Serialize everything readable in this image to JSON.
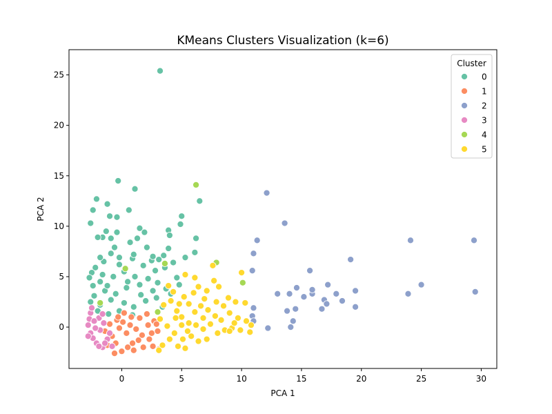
{
  "chart_data": {
    "type": "scatter",
    "title": "KMeans Clusters Visualization (k=6)",
    "xlabel": "PCA 1",
    "ylabel": "PCA 2",
    "xlim": [
      -4.4,
      31.3
    ],
    "ylim": [
      -4.1,
      27.5
    ],
    "xticks": [
      0,
      5,
      10,
      15,
      20,
      25,
      30
    ],
    "yticks": [
      0,
      5,
      10,
      15,
      20,
      25
    ],
    "grid": false,
    "legend": {
      "title": "Cluster",
      "placement": "top-right"
    },
    "series": [
      {
        "name": "0",
        "color": "#66c2a5",
        "points": [
          [
            3.2,
            25.4
          ],
          [
            -0.3,
            14.5
          ],
          [
            1.1,
            13.7
          ],
          [
            -2.1,
            12.7
          ],
          [
            -2.4,
            11.6
          ],
          [
            -1.2,
            12.2
          ],
          [
            0.6,
            11.6
          ],
          [
            -1.0,
            11.0
          ],
          [
            -0.4,
            10.9
          ],
          [
            -2.6,
            10.3
          ],
          [
            6.5,
            12.5
          ],
          [
            5.0,
            11.0
          ],
          [
            4.9,
            10.2
          ],
          [
            3.9,
            9.6
          ],
          [
            4.0,
            9.1
          ],
          [
            1.5,
            9.8
          ],
          [
            1.9,
            9.4
          ],
          [
            -1.3,
            9.5
          ],
          [
            -0.4,
            9.4
          ],
          [
            -1.6,
            8.9
          ],
          [
            -0.9,
            8.8
          ],
          [
            0.7,
            8.4
          ],
          [
            1.3,
            8.8
          ],
          [
            2.1,
            7.9
          ],
          [
            6.2,
            8.8
          ],
          [
            6.1,
            7.4
          ],
          [
            3.9,
            7.8
          ],
          [
            3.5,
            7.1
          ],
          [
            5.3,
            6.9
          ],
          [
            2.5,
            6.6
          ],
          [
            1.8,
            6.1
          ],
          [
            -0.9,
            7.3
          ],
          [
            -1.5,
            6.5
          ],
          [
            -2.2,
            5.9
          ],
          [
            -2.5,
            5.4
          ],
          [
            -2.7,
            4.9
          ],
          [
            -1.8,
            4.5
          ],
          [
            -0.7,
            5.0
          ],
          [
            0.2,
            5.5
          ],
          [
            1.1,
            5.0
          ],
          [
            2.2,
            4.8
          ],
          [
            3.0,
            4.4
          ],
          [
            3.7,
            3.8
          ],
          [
            4.6,
            4.9
          ],
          [
            4.1,
            3.3
          ],
          [
            2.6,
            3.6
          ],
          [
            1.6,
            3.2
          ],
          [
            0.4,
            3.9
          ],
          [
            -0.5,
            3.3
          ],
          [
            -1.4,
            3.6
          ],
          [
            -2.3,
            3.1
          ],
          [
            -2.6,
            2.5
          ],
          [
            -1.8,
            2.2
          ],
          [
            -0.9,
            2.7
          ],
          [
            0.2,
            2.4
          ],
          [
            1.0,
            2.0
          ],
          [
            2.0,
            2.6
          ],
          [
            2.9,
            2.9
          ],
          [
            3.4,
            2.0
          ],
          [
            -2.0,
            1.6
          ],
          [
            -1.1,
            1.3
          ],
          [
            -0.2,
            1.6
          ],
          [
            0.9,
            1.2
          ],
          [
            -2.4,
            4.1
          ],
          [
            -1.6,
            5.2
          ],
          [
            -0.2,
            6.2
          ],
          [
            0.9,
            6.8
          ],
          [
            2.8,
            5.6
          ],
          [
            3.6,
            5.9
          ],
          [
            -1.2,
            4.1
          ],
          [
            0.5,
            4.5
          ],
          [
            1.5,
            4.2
          ],
          [
            -0.6,
            7.9
          ],
          [
            -2.0,
            8.9
          ],
          [
            -0.2,
            6.9
          ],
          [
            1.0,
            7.2
          ],
          [
            2.6,
            7.0
          ],
          [
            -1.8,
            6.9
          ],
          [
            4.3,
            6.4
          ],
          [
            3.1,
            6.7
          ],
          [
            4.8,
            4.2
          ]
        ]
      },
      {
        "name": "1",
        "color": "#fc8d62",
        "points": [
          [
            0.2,
            1.4
          ],
          [
            -0.4,
            0.7
          ],
          [
            0.7,
            0.2
          ],
          [
            1.5,
            0.9
          ],
          [
            2.1,
            1.3
          ],
          [
            2.7,
            0.6
          ],
          [
            3.0,
            -0.4
          ],
          [
            2.3,
            -1.2
          ],
          [
            1.8,
            -2.0
          ],
          [
            0.9,
            -1.6
          ],
          [
            0.0,
            -2.4
          ],
          [
            -0.6,
            -2.6
          ],
          [
            -1.2,
            -1.8
          ],
          [
            -0.8,
            -0.9
          ],
          [
            0.4,
            -0.6
          ],
          [
            1.2,
            -0.2
          ],
          [
            -0.2,
            -0.1
          ],
          [
            -1.4,
            -0.4
          ],
          [
            1.0,
            -2.3
          ],
          [
            2.6,
            -1.9
          ],
          [
            3.1,
            -2.2
          ],
          [
            2.2,
            0.2
          ],
          [
            -0.5,
            -1.6
          ],
          [
            0.8,
            1.0
          ],
          [
            1.7,
            -0.8
          ],
          [
            -1.0,
            0.3
          ],
          [
            0.1,
            0.5
          ],
          [
            2.9,
            0.3
          ],
          [
            1.4,
            -1.3
          ],
          [
            0.5,
            -2.0
          ],
          [
            -0.3,
            1.0
          ],
          [
            2.5,
            -0.6
          ]
        ]
      },
      {
        "name": "2",
        "color": "#8da0cb",
        "points": [
          [
            12.1,
            13.3
          ],
          [
            13.6,
            10.3
          ],
          [
            11.3,
            8.6
          ],
          [
            11.0,
            7.3
          ],
          [
            10.9,
            5.6
          ],
          [
            11.0,
            1.9
          ],
          [
            10.9,
            1.1
          ],
          [
            11.0,
            0.6
          ],
          [
            12.2,
            -0.1
          ],
          [
            13.0,
            3.3
          ],
          [
            14.0,
            3.3
          ],
          [
            13.8,
            1.6
          ],
          [
            14.3,
            0.6
          ],
          [
            14.1,
            0.0
          ],
          [
            14.5,
            1.8
          ],
          [
            14.6,
            3.9
          ],
          [
            15.2,
            3.0
          ],
          [
            15.7,
            5.6
          ],
          [
            15.9,
            3.3
          ],
          [
            15.9,
            3.7
          ],
          [
            16.7,
            1.8
          ],
          [
            16.9,
            2.7
          ],
          [
            17.1,
            2.3
          ],
          [
            17.2,
            4.2
          ],
          [
            17.9,
            3.3
          ],
          [
            18.4,
            2.6
          ],
          [
            19.1,
            6.7
          ],
          [
            19.5,
            3.6
          ],
          [
            19.5,
            2.0
          ],
          [
            24.1,
            8.6
          ],
          [
            23.9,
            3.3
          ],
          [
            25.0,
            4.2
          ],
          [
            29.4,
            8.6
          ],
          [
            29.5,
            3.5
          ]
        ]
      },
      {
        "name": "3",
        "color": "#e78ac3",
        "points": [
          [
            -2.6,
            1.4
          ],
          [
            -2.7,
            0.8
          ],
          [
            -2.8,
            0.2
          ],
          [
            -2.6,
            -0.6
          ],
          [
            -2.4,
            -1.1
          ],
          [
            -2.1,
            -1.6
          ],
          [
            -1.6,
            -2.0
          ],
          [
            -1.9,
            0.9
          ],
          [
            -1.5,
            0.4
          ],
          [
            -1.8,
            -0.3
          ],
          [
            -1.2,
            -1.2
          ],
          [
            -2.3,
            0.6
          ],
          [
            -2.8,
            -0.9
          ],
          [
            -1.6,
            1.3
          ],
          [
            -1.0,
            -0.6
          ],
          [
            -2.2,
            -0.1
          ],
          [
            -1.4,
            -1.6
          ],
          [
            -2.5,
            1.9
          ],
          [
            -1.9,
            -1.9
          ],
          [
            -0.8,
            -1.9
          ]
        ]
      },
      {
        "name": "4",
        "color": "#a6d854",
        "points": [
          [
            6.2,
            14.1
          ],
          [
            7.9,
            6.4
          ],
          [
            10.1,
            4.4
          ],
          [
            3.6,
            6.3
          ],
          [
            0.3,
            5.8
          ],
          [
            -1.8,
            2.4
          ],
          [
            3.0,
            1.5
          ]
        ]
      },
      {
        "name": "5",
        "color": "#ffd92f",
        "points": [
          [
            3.5,
            2.2
          ],
          [
            4.1,
            2.6
          ],
          [
            4.6,
            1.6
          ],
          [
            5.0,
            1.0
          ],
          [
            5.6,
            0.4
          ],
          [
            6.2,
            0.2
          ],
          [
            6.8,
            -0.2
          ],
          [
            7.4,
            0.3
          ],
          [
            8.0,
            -0.6
          ],
          [
            8.6,
            -0.3
          ],
          [
            9.2,
            -0.1
          ],
          [
            9.9,
            -0.3
          ],
          [
            10.4,
            0.6
          ],
          [
            10.7,
            -0.5
          ],
          [
            3.2,
            0.8
          ],
          [
            3.8,
            0.1
          ],
          [
            4.4,
            -0.6
          ],
          [
            5.1,
            -1.2
          ],
          [
            5.8,
            -0.9
          ],
          [
            6.4,
            -1.4
          ],
          [
            7.1,
            -1.2
          ],
          [
            3.4,
            -1.8
          ],
          [
            4.0,
            -1.2
          ],
          [
            4.7,
            -1.9
          ],
          [
            5.3,
            -2.1
          ],
          [
            6.1,
            1.5
          ],
          [
            6.6,
            2.1
          ],
          [
            7.2,
            1.7
          ],
          [
            7.8,
            1.1
          ],
          [
            8.3,
            0.7
          ],
          [
            9.0,
            1.4
          ],
          [
            9.7,
            0.9
          ],
          [
            5.2,
            3.0
          ],
          [
            6.0,
            3.4
          ],
          [
            6.4,
            4.0
          ],
          [
            7.1,
            3.6
          ],
          [
            7.7,
            4.6
          ],
          [
            8.1,
            4.0
          ],
          [
            6.9,
            2.8
          ],
          [
            5.6,
            2.3
          ],
          [
            7.6,
            6.1
          ],
          [
            10.0,
            5.4
          ],
          [
            5.3,
            5.2
          ],
          [
            6.1,
            4.9
          ],
          [
            8.9,
            2.9
          ],
          [
            9.5,
            2.5
          ],
          [
            10.3,
            2.4
          ],
          [
            8.5,
            2.1
          ],
          [
            9.0,
            -0.4
          ],
          [
            10.8,
            0.2
          ],
          [
            4.3,
            3.5
          ],
          [
            3.9,
            4.1
          ],
          [
            5.0,
            0.2
          ],
          [
            3.1,
            -2.3
          ],
          [
            4.5,
            0.9
          ],
          [
            7.9,
            2.5
          ],
          [
            6.8,
            0.9
          ],
          [
            5.5,
            -0.4
          ],
          [
            9.4,
            0.4
          ],
          [
            4.8,
            2.3
          ]
        ]
      }
    ]
  }
}
